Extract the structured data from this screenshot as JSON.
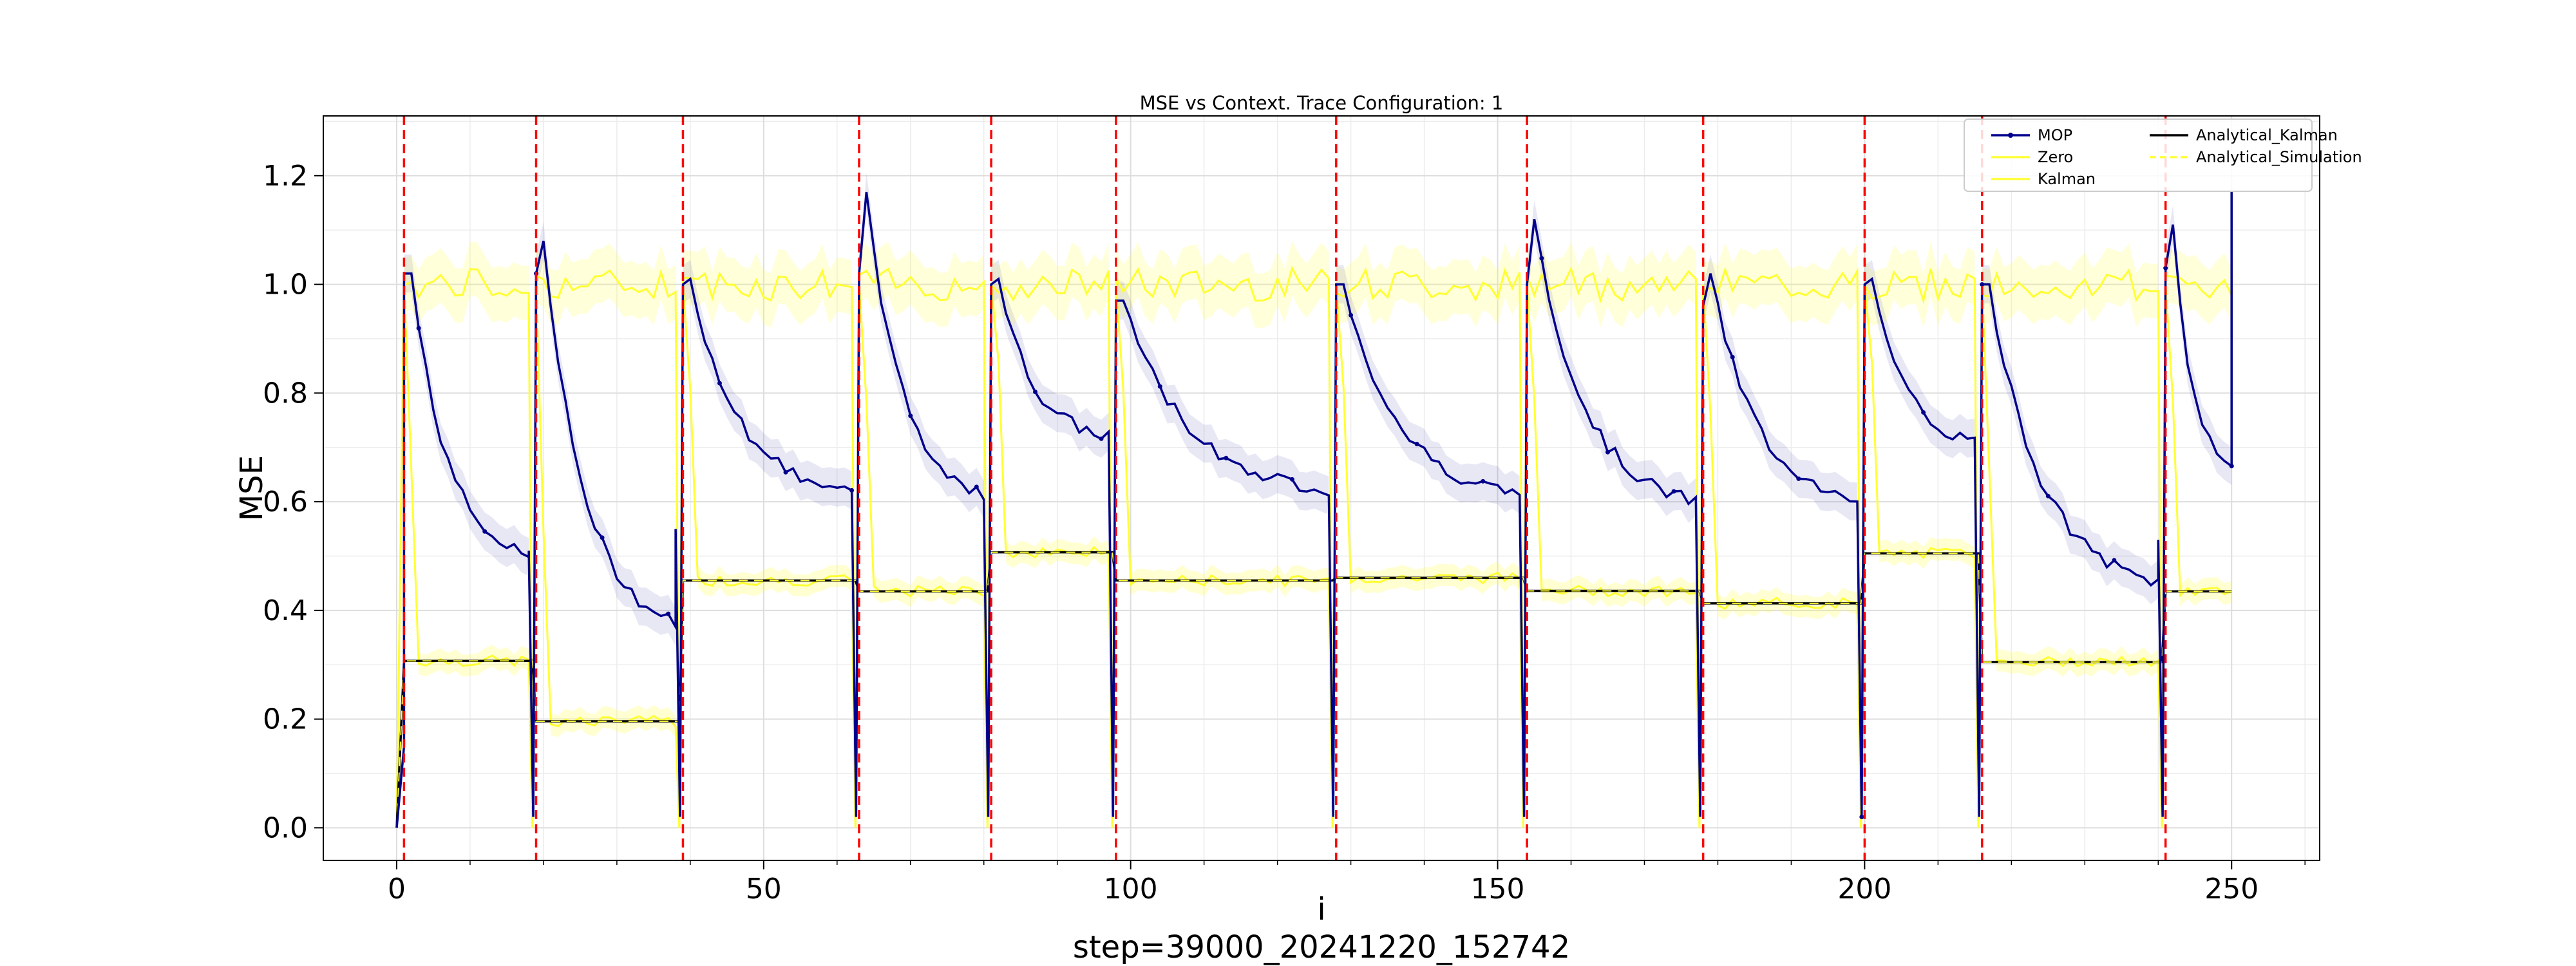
{
  "chart_data": {
    "type": "line",
    "title": "MSE vs Context. Trace Configuration: 1",
    "xlabel": "i",
    "ylabel": "MSE",
    "footer": "step=39000_20241220_152742",
    "xlim": [
      -10,
      262
    ],
    "ylim": [
      -0.06,
      1.31
    ],
    "xticks": [
      0,
      50,
      100,
      150,
      200,
      250
    ],
    "xtick_labels": [
      "0",
      "50",
      "100",
      "150",
      "200",
      "250"
    ],
    "yticks": [
      0.0,
      0.2,
      0.4,
      0.6,
      0.8,
      1.0,
      1.2
    ],
    "ytick_labels": [
      "0.0",
      "0.2",
      "0.4",
      "0.6",
      "0.8",
      "1.0",
      "1.2"
    ],
    "grid": true,
    "legend_position": "top-right",
    "legend": [
      {
        "label": "MOP",
        "color": "#00008b",
        "marker": true
      },
      {
        "label": "Zero",
        "color": "#ffff33"
      },
      {
        "label": "Kalman",
        "color": "#ffff33"
      },
      {
        "label": "Analytical_Kalman",
        "color": "#000000"
      },
      {
        "label": "Analytical_Simulation",
        "color": "#ffff33"
      }
    ],
    "trace_boundaries": [
      1,
      19,
      39,
      63,
      81,
      98,
      128,
      154,
      178,
      200,
      216,
      241
    ],
    "colors": {
      "mop": "#00008b",
      "zero": "#ffff33",
      "kalman": "#ffff33",
      "analytical_kalman": "#000000",
      "analytical_simulation": "#ffff33",
      "boundary": "#ff0000"
    },
    "segments": [
      {
        "start": 1,
        "end": 18,
        "analytical": 0.307,
        "mop_first": 1.02,
        "mop_peak": 1.02,
        "mop_end": 0.48,
        "tail": 0.51
      },
      {
        "start": 19,
        "end": 38,
        "analytical": 0.196,
        "mop_first": 1.02,
        "mop_peak": 1.08,
        "mop_end": 0.35,
        "tail": 0.55
      },
      {
        "start": 39,
        "end": 62,
        "analytical": 0.455,
        "mop_first": 1.0,
        "mop_peak": 1.01,
        "mop_end": 0.6
      },
      {
        "start": 63,
        "end": 80,
        "analytical": 0.435,
        "mop_first": 1.02,
        "mop_peak": 1.17,
        "mop_end": 0.59
      },
      {
        "start": 81,
        "end": 97,
        "analytical": 0.507,
        "mop_first": 1.0,
        "mop_peak": 1.01,
        "mop_end": 0.71
      },
      {
        "start": 98,
        "end": 127,
        "analytical": 0.455,
        "mop_first": 0.97,
        "mop_peak": 0.97,
        "mop_end": 0.61
      },
      {
        "start": 128,
        "end": 153,
        "analytical": 0.46,
        "mop_first": 1.0,
        "mop_peak": 1.0,
        "mop_end": 0.6
      },
      {
        "start": 154,
        "end": 177,
        "analytical": 0.436,
        "mop_first": 1.0,
        "mop_peak": 1.12,
        "mop_end": 0.58
      },
      {
        "start": 178,
        "end": 199,
        "analytical": 0.413,
        "mop_first": 0.96,
        "mop_peak": 1.02,
        "mop_end": 0.59
      },
      {
        "start": 200,
        "end": 215,
        "analytical": 0.505,
        "mop_first": 1.0,
        "mop_peak": 1.01,
        "mop_end": 0.7
      },
      {
        "start": 216,
        "end": 240,
        "analytical": 0.305,
        "mop_first": 1.0,
        "mop_peak": 1.0,
        "mop_end": 0.43,
        "tail": 0.53
      },
      {
        "start": 241,
        "end": 250,
        "analytical": 0.435,
        "mop_first": 1.03,
        "mop_peak": 1.11,
        "mop_end": 0.65,
        "tail": 1.17
      }
    ]
  }
}
